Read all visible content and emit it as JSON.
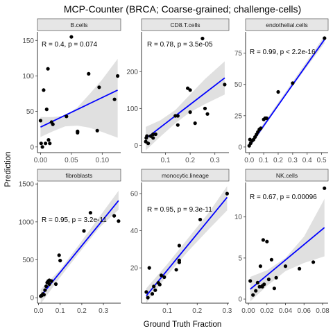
{
  "figure": {
    "title": "MCP-Counter (BRCA; Coarse-grained; challenge-cells)",
    "xlabel": "Ground Truth Fraction",
    "ylabel": "Prediction"
  },
  "colors": {
    "line": "#0000ff",
    "ribbon": "#999999",
    "points": "#000000",
    "strip": "#e6e6e6"
  },
  "chart_data": [
    {
      "type": "scatter",
      "panel": "B.cells",
      "annotation": "R = 0.4, p = 0.074",
      "xlim": [
        -0.005,
        0.13
      ],
      "ylim": [
        -8,
        162
      ],
      "xticks": [
        0.0,
        0.05,
        0.1
      ],
      "xtick_labels": [
        "0.00",
        "0.05",
        "0.10"
      ],
      "yticks": [
        0,
        50,
        100,
        150
      ],
      "ytick_labels": [
        "0",
        "50",
        "100",
        "150"
      ],
      "x": [
        0.0,
        0.001,
        0.003,
        0.005,
        0.008,
        0.01,
        0.012,
        0.013,
        0.015,
        0.018,
        0.02,
        0.042,
        0.05,
        0.06,
        0.06,
        0.078,
        0.092,
        0.095,
        0.12,
        0.125
      ],
      "y": [
        37,
        5,
        0,
        80,
        5,
        53,
        110,
        10,
        5,
        35,
        32,
        43,
        155,
        22,
        20,
        103,
        23,
        84,
        67,
        100
      ],
      "fit": [
        0.0,
        28,
        0.125,
        80
      ],
      "band_x": [
        0.0,
        0.02,
        0.04,
        0.06,
        0.08,
        0.1,
        0.125
      ],
      "band_lo": [
        14,
        22,
        29,
        30,
        27,
        21,
        13
      ],
      "band_hi": [
        42,
        42,
        44,
        56,
        75,
        95,
        124
      ]
    },
    {
      "type": "scatter",
      "panel": "CD8.T.cells",
      "annotation": "R = 0.78, p = 3.5e-05",
      "xlim": [
        0.003,
        0.357
      ],
      "ylim": [
        -20,
        308
      ],
      "xticks": [
        0.1,
        0.2,
        0.3
      ],
      "xtick_labels": [
        "0.1",
        "0.2",
        "0.3"
      ],
      "yticks": [
        0,
        100,
        200
      ],
      "ytick_labels": [
        "0",
        "100",
        "200"
      ],
      "x": [
        0.02,
        0.022,
        0.025,
        0.03,
        0.04,
        0.05,
        0.05,
        0.06,
        0.14,
        0.15,
        0.15,
        0.19,
        0.2,
        0.2,
        0.22,
        0.25,
        0.26,
        0.27,
        0.34
      ],
      "y": [
        10,
        20,
        25,
        5,
        25,
        20,
        30,
        30,
        80,
        80,
        55,
        155,
        90,
        150,
        60,
        290,
        100,
        85,
        165
      ],
      "fit": [
        0.02,
        18,
        0.34,
        183
      ],
      "band_x": [
        0.02,
        0.08,
        0.14,
        0.2,
        0.26,
        0.34
      ],
      "band_lo": [
        -14,
        24,
        60,
        90,
        112,
        138
      ],
      "band_hi": [
        50,
        68,
        96,
        138,
        180,
        228
      ]
    },
    {
      "type": "scatter",
      "panel": "endothelial.cells",
      "annotation": "R = 0.99, p < 2.2e-16",
      "xlim": [
        -0.025,
        0.545
      ],
      "ylim": [
        -4.5,
        92
      ],
      "xticks": [
        0.0,
        0.1,
        0.2,
        0.3,
        0.4,
        0.5
      ],
      "xtick_labels": [
        "0.0",
        "0.1",
        "0.2",
        "0.3",
        "0.4",
        "0.5"
      ],
      "yticks": [
        0,
        25,
        50,
        75
      ],
      "ytick_labels": [
        "0",
        "25",
        "50",
        "75"
      ],
      "x": [
        0.0,
        0.005,
        0.01,
        0.02,
        0.03,
        0.04,
        0.05,
        0.06,
        0.07,
        0.08,
        0.1,
        0.11,
        0.12,
        0.2,
        0.3,
        0.52
      ],
      "y": [
        1,
        6,
        3,
        5,
        6,
        8,
        10,
        12,
        14,
        15,
        22,
        23,
        23,
        44,
        51,
        87
      ],
      "fit": [
        0.0,
        0.5,
        0.52,
        86
      ],
      "band_x": [
        0.0,
        0.26,
        0.52
      ],
      "band_lo": [
        -1.5,
        42.5,
        83
      ],
      "band_hi": [
        2.5,
        45.5,
        89
      ]
    },
    {
      "type": "scatter",
      "panel": "fibroblasts",
      "annotation": "R = 0.95, p = 3.2e-11",
      "xlim": [
        -0.005,
        0.38
      ],
      "ylim": [
        -72,
        1520
      ],
      "xticks": [
        0.0,
        0.1,
        0.2,
        0.3
      ],
      "xtick_labels": [
        "0.0",
        "0.1",
        "0.2",
        "0.3"
      ],
      "yticks": [
        0,
        500,
        1000,
        1500
      ],
      "ytick_labels": [
        "0",
        "500",
        "1000",
        "1500"
      ],
      "x": [
        0.01,
        0.015,
        0.02,
        0.025,
        0.03,
        0.035,
        0.04,
        0.045,
        0.05,
        0.05,
        0.06,
        0.08,
        0.095,
        0.1,
        0.21,
        0.24,
        0.35,
        0.37
      ],
      "y": [
        20,
        30,
        50,
        40,
        100,
        150,
        200,
        220,
        180,
        230,
        220,
        180,
        560,
        490,
        880,
        1120,
        1080,
        1010
      ],
      "fit": [
        0.01,
        20,
        0.37,
        1280
      ],
      "band_x": [
        0.01,
        0.1,
        0.19,
        0.28,
        0.37
      ],
      "band_lo": [
        -80,
        270,
        600,
        920,
        1160
      ],
      "band_hi": [
        110,
        370,
        710,
        1060,
        1410
      ]
    },
    {
      "type": "scatter",
      "panel": "monocytic.lineage",
      "annotation": "R = 0.95, p = 9.3e-11",
      "xlim": [
        0.014,
        0.306
      ],
      "ylim": [
        1,
        66
      ],
      "xticks": [
        0.1,
        0.2,
        0.3
      ],
      "xtick_labels": [
        "0.1",
        "0.2",
        "0.3"
      ],
      "yticks": [
        20,
        40,
        60
      ],
      "ytick_labels": [
        "20",
        "40",
        "60"
      ],
      "x": [
        0.03,
        0.035,
        0.04,
        0.05,
        0.055,
        0.06,
        0.07,
        0.075,
        0.08,
        0.09,
        0.13,
        0.14,
        0.14,
        0.14,
        0.21,
        0.3
      ],
      "y": [
        7,
        4,
        20,
        6,
        10,
        8,
        12,
        11,
        16,
        15,
        19,
        23,
        32,
        24,
        46,
        60
      ],
      "fit": [
        0.03,
        5,
        0.3,
        58
      ],
      "band_x": [
        0.03,
        0.1,
        0.17,
        0.24,
        0.3
      ],
      "band_lo": [
        1,
        16,
        29,
        41,
        51
      ],
      "band_hi": [
        9,
        22,
        36,
        50,
        64
      ]
    },
    {
      "type": "scatter",
      "panel": "NK.cells",
      "annotation": "R = 0.67, p = 0.00096",
      "xlim": [
        -0.003,
        0.086
      ],
      "ylim": [
        -0.5,
        14.2
      ],
      "xticks": [
        0.0,
        0.02,
        0.04,
        0.06,
        0.08
      ],
      "xtick_labels": [
        "0.00",
        "0.02",
        "0.04",
        "0.06",
        "0.08"
      ],
      "yticks": [
        0,
        5,
        10
      ],
      "ytick_labels": [
        "0",
        "5",
        "10"
      ],
      "x": [
        0.002,
        0.005,
        0.008,
        0.01,
        0.012,
        0.013,
        0.015,
        0.015,
        0.016,
        0.017,
        0.02,
        0.022,
        0.025,
        0.028,
        0.03,
        0.04,
        0.055,
        0.07,
        0.082
      ],
      "y": [
        2.2,
        0.5,
        1,
        2,
        1.5,
        4,
        1.5,
        1.6,
        7.2,
        1.8,
        7,
        2.4,
        4.8,
        1.3,
        2.6,
        4,
        3.7,
        4.5,
        13.5
      ],
      "fit": [
        0.002,
        1.2,
        0.082,
        8.7
      ],
      "band_x": [
        0.002,
        0.02,
        0.04,
        0.06,
        0.082
      ],
      "band_lo": [
        -0.3,
        1.6,
        3.4,
        4.4,
        5.2
      ],
      "band_hi": [
        2.7,
        3.5,
        5.0,
        7.6,
        12.2
      ]
    }
  ]
}
